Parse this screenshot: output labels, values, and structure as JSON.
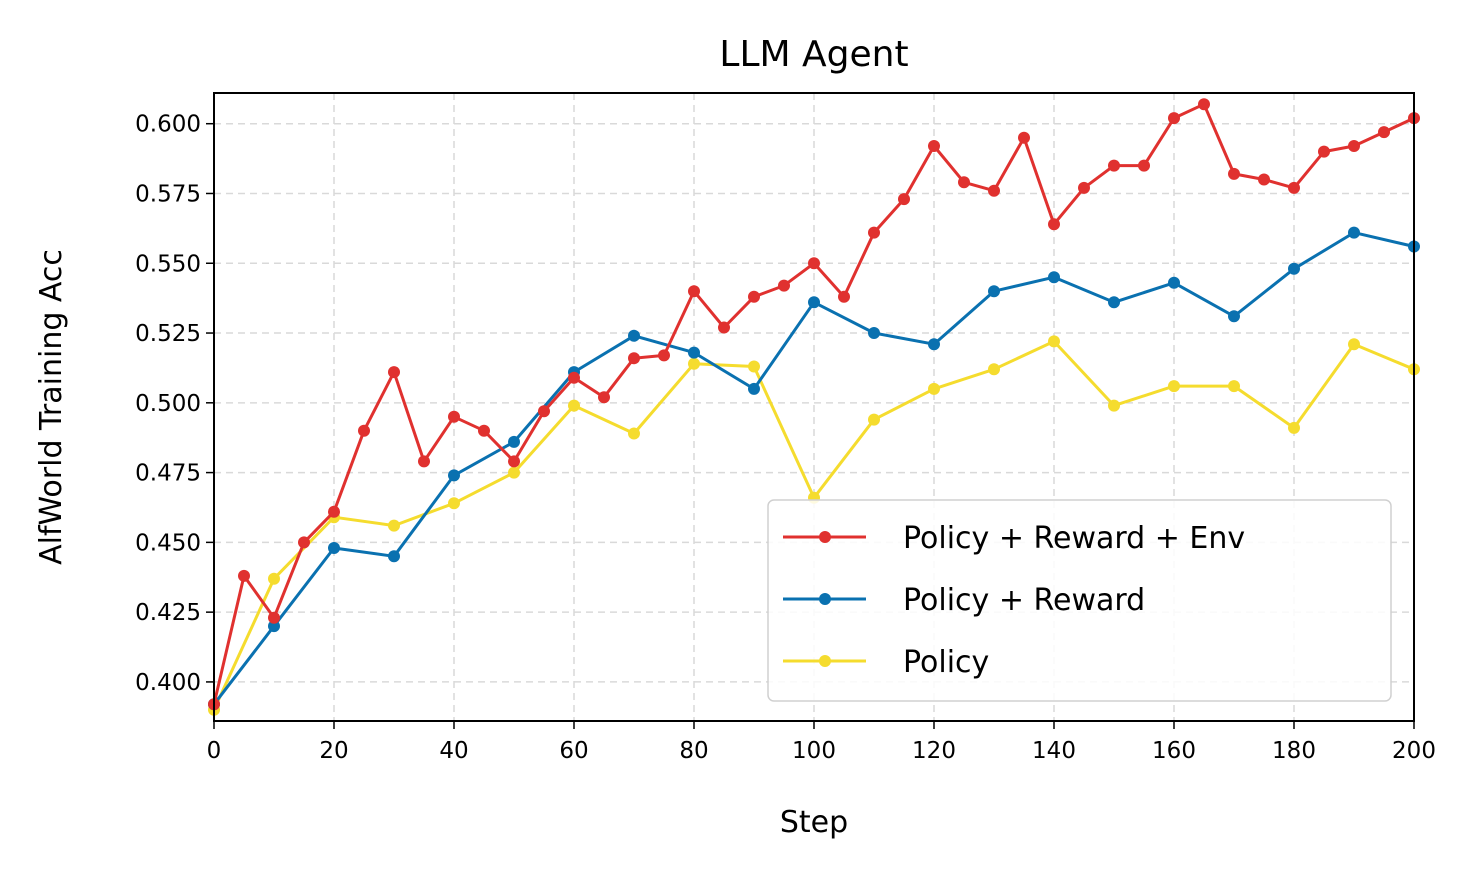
{
  "chart_data": {
    "type": "line",
    "title": "LLM Agent",
    "xlabel": "Step",
    "ylabel": "AlfWorld Training Acc",
    "xlim": [
      0,
      200
    ],
    "ylim": [
      0.386,
      0.611
    ],
    "xticks": [
      0,
      20,
      40,
      60,
      80,
      100,
      120,
      140,
      160,
      180,
      200
    ],
    "yticks": [
      0.4,
      0.425,
      0.45,
      0.475,
      0.5,
      0.525,
      0.55,
      0.575,
      0.6
    ],
    "xtick_labels": [
      "0",
      "20",
      "40",
      "60",
      "80",
      "100",
      "120",
      "140",
      "160",
      "180",
      "200"
    ],
    "ytick_labels": [
      "0.400",
      "0.425",
      "0.450",
      "0.475",
      "0.500",
      "0.525",
      "0.550",
      "0.575",
      "0.600"
    ],
    "grid": true,
    "legend_position": "lower-right",
    "series": [
      {
        "name": "Policy + Reward + Env",
        "color": "#e0312f",
        "x": [
          0,
          5,
          10,
          15,
          20,
          25,
          30,
          35,
          40,
          45,
          50,
          55,
          60,
          65,
          70,
          75,
          80,
          85,
          90,
          95,
          100,
          105,
          110,
          115,
          120,
          125,
          130,
          135,
          140,
          145,
          150,
          155,
          160,
          165,
          170,
          175,
          180,
          185,
          190,
          195,
          200
        ],
        "y": [
          0.392,
          0.438,
          0.423,
          0.45,
          0.461,
          0.49,
          0.511,
          0.479,
          0.495,
          0.49,
          0.479,
          0.497,
          0.509,
          0.502,
          0.516,
          0.517,
          0.54,
          0.527,
          0.538,
          0.542,
          0.55,
          0.538,
          0.561,
          0.573,
          0.592,
          0.579,
          0.576,
          0.595,
          0.564,
          0.577,
          0.585,
          0.585,
          0.602,
          0.607,
          0.582,
          0.58,
          0.577,
          0.59,
          0.592,
          0.597,
          0.602
        ]
      },
      {
        "name": "Policy + Reward",
        "color": "#0a71b0",
        "x": [
          0,
          10,
          20,
          30,
          40,
          50,
          60,
          70,
          80,
          90,
          100,
          110,
          120,
          130,
          140,
          150,
          160,
          170,
          180,
          190,
          200
        ],
        "y": [
          0.392,
          0.42,
          0.448,
          0.445,
          0.474,
          0.486,
          0.511,
          0.524,
          0.518,
          0.505,
          0.536,
          0.525,
          0.521,
          0.54,
          0.545,
          0.536,
          0.543,
          0.531,
          0.548,
          0.561,
          0.556
        ]
      },
      {
        "name": "Policy",
        "color": "#f5dc2e",
        "x": [
          0,
          10,
          20,
          30,
          40,
          50,
          60,
          70,
          80,
          90,
          100,
          110,
          120,
          130,
          140,
          150,
          160,
          170,
          180,
          190,
          200
        ],
        "y": [
          0.39,
          0.437,
          0.459,
          0.456,
          0.464,
          0.475,
          0.499,
          0.489,
          0.514,
          0.513,
          0.466,
          0.494,
          0.505,
          0.512,
          0.522,
          0.499,
          0.506,
          0.506,
          0.491,
          0.521,
          0.512
        ]
      }
    ]
  }
}
